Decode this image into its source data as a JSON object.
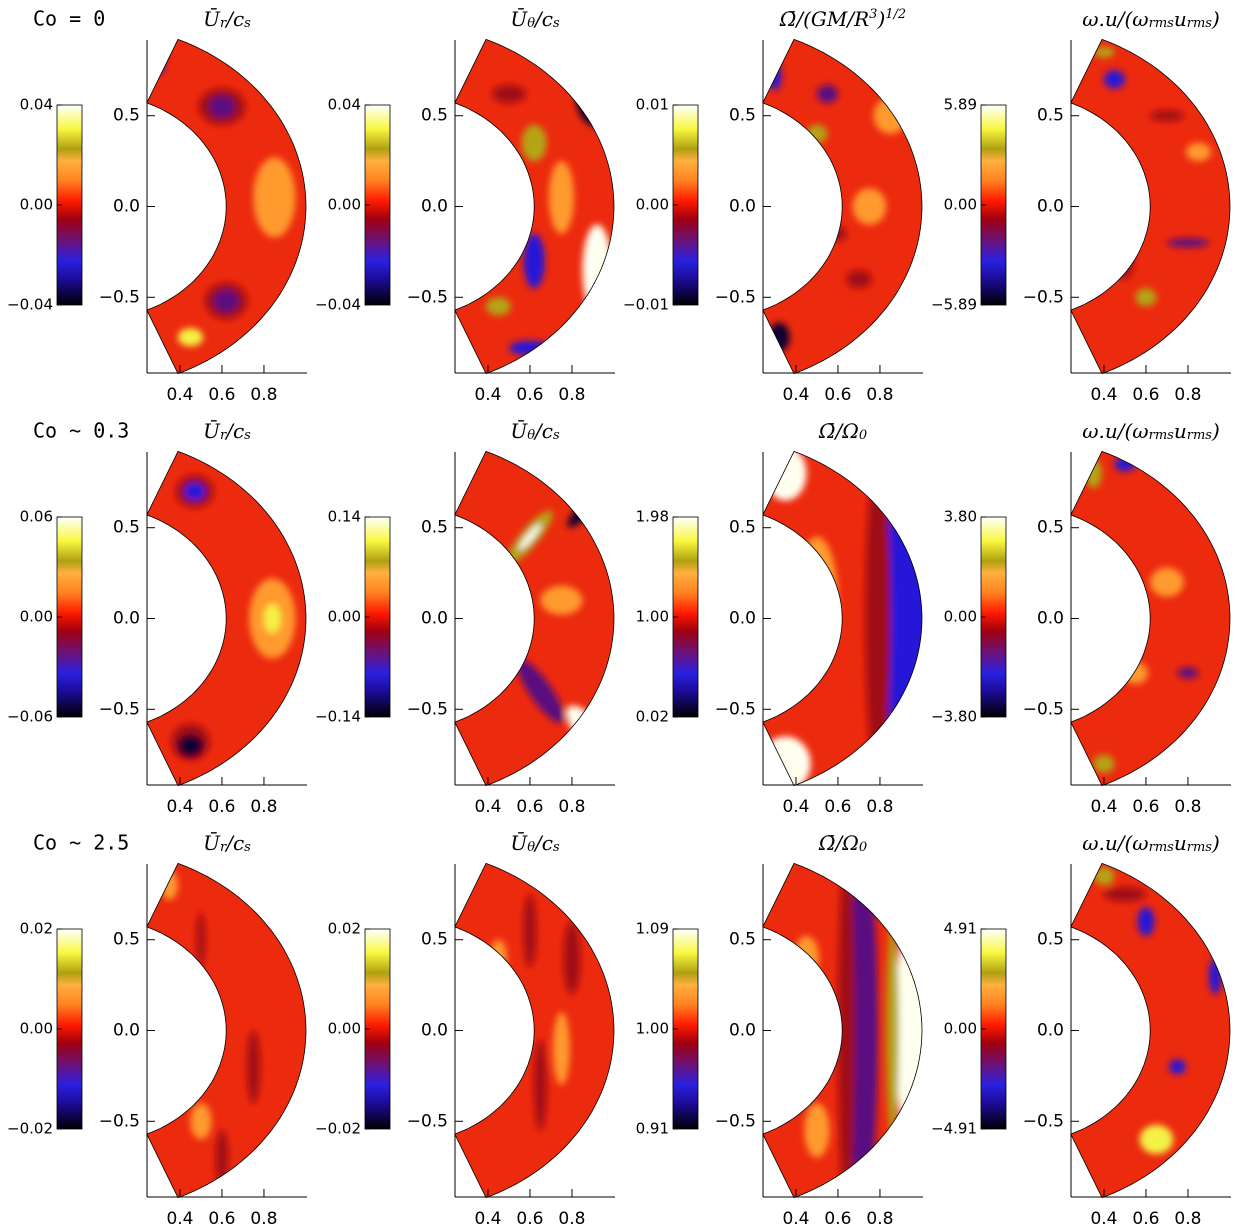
{
  "figure": {
    "axes": {
      "xlim": [
        0.243,
        1.005
      ],
      "ylim": [
        -0.917,
        0.917
      ],
      "xticks": [
        0.4,
        0.6,
        0.8
      ],
      "yticks": [
        {
          "value": -0.5,
          "label": "−0.5"
        },
        {
          "value": 0,
          "label": "0.0"
        },
        0.5
      ]
    },
    "rows": [
      {
        "label": "Co = 0",
        "panels": [
          {
            "title": [
              {
                "t": "Ū"
              },
              {
                "t": "r",
                "sub": true
              },
              {
                "t": "/c"
              },
              {
                "t": "s",
                "sub": true
              }
            ],
            "colorbar_ticks": [
              {
                "value": -0.04,
                "label": "−0.04"
              },
              {
                "value": 0,
                "label": "0.00"
              },
              0.04
            ]
          },
          {
            "title": [
              {
                "t": "Ū"
              },
              {
                "t": "θ",
                "sub": true
              },
              {
                "t": "/c"
              },
              {
                "t": "s",
                "sub": true
              }
            ],
            "colorbar_ticks": [
              {
                "value": -0.04,
                "label": "−0.04"
              },
              {
                "value": 0,
                "label": "0.00"
              },
              0.04
            ]
          },
          {
            "title": [
              {
                "t": "Ω̄/(GM/R"
              },
              {
                "t": "3",
                "sup": true
              },
              {
                "t": ")"
              },
              {
                "t": "1/2",
                "sup": true
              }
            ],
            "colorbar_ticks": [
              {
                "value": -0.01,
                "label": "−0.01"
              },
              {
                "value": 0,
                "label": "0.00"
              },
              0.01
            ]
          },
          {
            "title": [
              {
                "t": "ω.u/(ω"
              },
              {
                "t": "rms",
                "sub": true
              },
              {
                "t": "u"
              },
              {
                "t": "rms",
                "sub": true
              },
              {
                "t": ")"
              }
            ],
            "colorbar_ticks": [
              {
                "value": -5.89,
                "label": "−5.89"
              },
              {
                "value": 0,
                "label": "0.00"
              },
              5.89
            ]
          }
        ]
      },
      {
        "label": "Co ~ 0.3",
        "panels": [
          {
            "title": [
              {
                "t": "Ū"
              },
              {
                "t": "r",
                "sub": true
              },
              {
                "t": "/c"
              },
              {
                "t": "s",
                "sub": true
              }
            ],
            "colorbar_ticks": [
              {
                "value": -0.06,
                "label": "−0.06"
              },
              {
                "value": 0,
                "label": "0.00"
              },
              0.06
            ]
          },
          {
            "title": [
              {
                "t": "Ū"
              },
              {
                "t": "θ",
                "sub": true
              },
              {
                "t": "/c"
              },
              {
                "t": "s",
                "sub": true
              }
            ],
            "colorbar_ticks": [
              {
                "value": -0.14,
                "label": "−0.14"
              },
              {
                "value": 0,
                "label": "0.00"
              },
              0.14
            ]
          },
          {
            "title": [
              {
                "t": "Ω̄/Ω"
              },
              {
                "t": "0",
                "sub": true
              }
            ],
            "colorbar_ticks": [
              0.02,
              {
                "value": 1,
                "label": "1.00"
              },
              1.98
            ]
          },
          {
            "title": [
              {
                "t": "ω.u/(ω"
              },
              {
                "t": "rms",
                "sub": true
              },
              {
                "t": "u"
              },
              {
                "t": "rms",
                "sub": true
              },
              {
                "t": ")"
              }
            ],
            "colorbar_ticks": [
              {
                "value": -3.8,
                "label": "−3.80"
              },
              {
                "value": 0,
                "label": "0.00"
              },
              {
                "value": 3.8,
                "label": "3.80"
              }
            ]
          }
        ]
      },
      {
        "label": "Co ~ 2.5",
        "panels": [
          {
            "title": [
              {
                "t": "Ū"
              },
              {
                "t": "r",
                "sub": true
              },
              {
                "t": "/c"
              },
              {
                "t": "s",
                "sub": true
              }
            ],
            "colorbar_ticks": [
              {
                "value": -0.02,
                "label": "−0.02"
              },
              {
                "value": 0,
                "label": "0.00"
              },
              0.02
            ]
          },
          {
            "title": [
              {
                "t": "Ū"
              },
              {
                "t": "θ",
                "sub": true
              },
              {
                "t": "/c"
              },
              {
                "t": "s",
                "sub": true
              }
            ],
            "colorbar_ticks": [
              {
                "value": -0.02,
                "label": "−0.02"
              },
              {
                "value": 0,
                "label": "0.00"
              },
              0.02
            ]
          },
          {
            "title": [
              {
                "t": "Ω̄/Ω"
              },
              {
                "t": "0",
                "sub": true
              }
            ],
            "colorbar_ticks": [
              0.91,
              {
                "value": 1,
                "label": "1.00"
              },
              1.09
            ]
          },
          {
            "title": [
              {
                "t": "ω.u/(ω"
              },
              {
                "t": "rms",
                "sub": true
              },
              {
                "t": "u"
              },
              {
                "t": "rms",
                "sub": true
              },
              {
                "t": ")"
              }
            ],
            "colorbar_ticks": [
              {
                "value": -4.91,
                "label": "−4.91"
              },
              {
                "value": 0,
                "label": "0.00"
              },
              4.91
            ]
          }
        ]
      }
    ]
  }
}
